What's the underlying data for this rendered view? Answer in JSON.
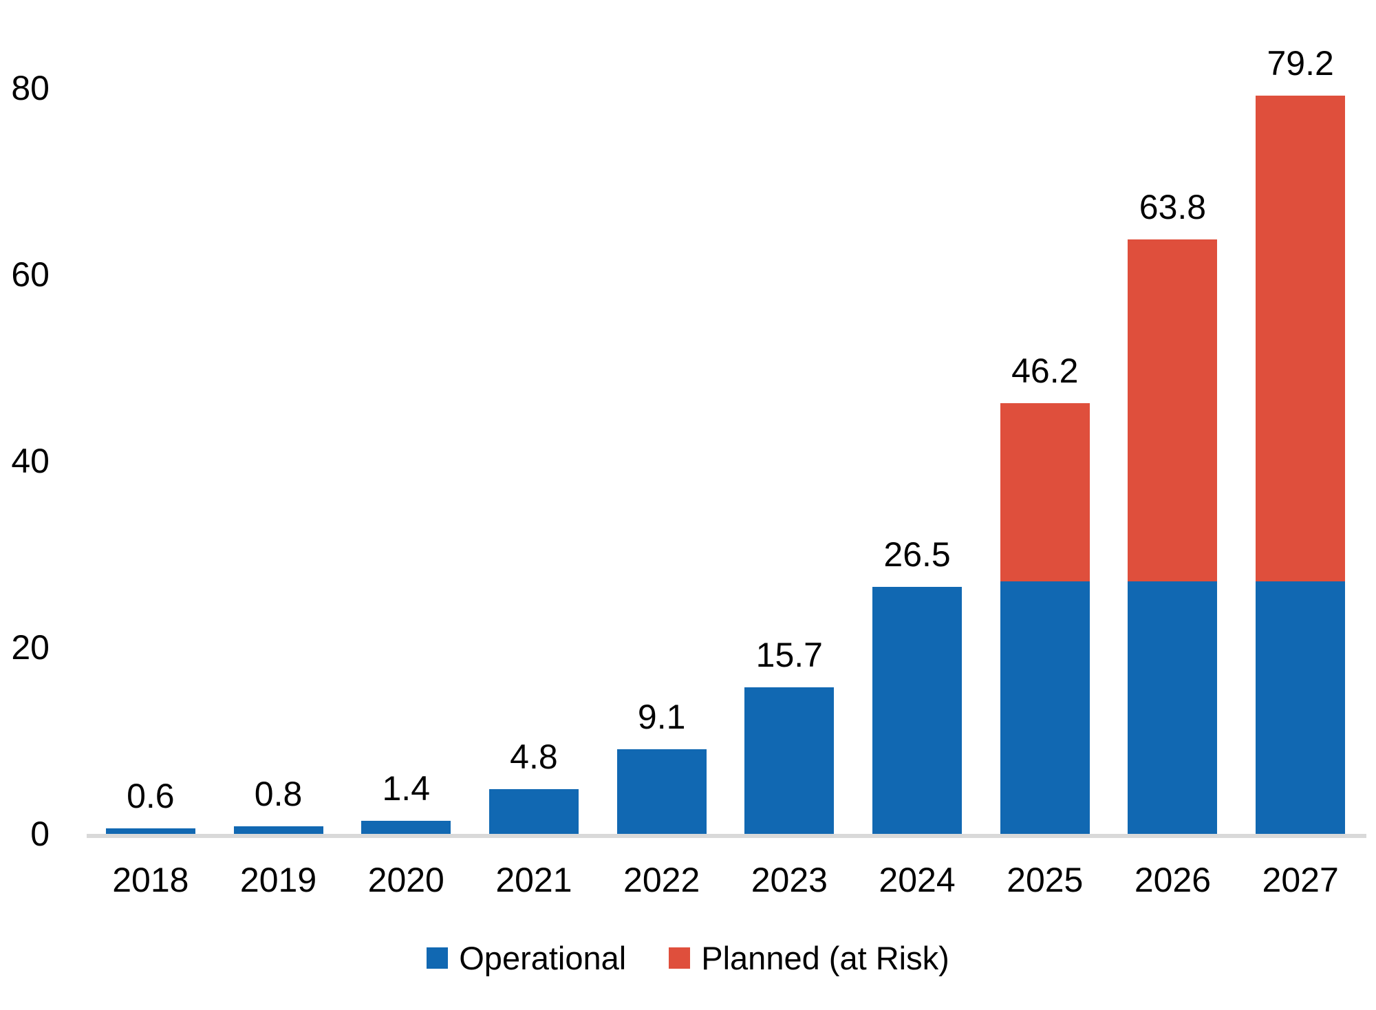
{
  "chart_data": {
    "type": "bar",
    "stacked": true,
    "title": "",
    "xlabel": "",
    "ylabel": "",
    "categories": [
      "2018",
      "2019",
      "2020",
      "2021",
      "2022",
      "2023",
      "2024",
      "2025",
      "2026",
      "2027"
    ],
    "series": [
      {
        "name": "Operational",
        "color": "#1168B2",
        "values": [
          0.6,
          0.8,
          1.4,
          4.8,
          9.1,
          15.7,
          26.5,
          27.1,
          27.1,
          27.1
        ]
      },
      {
        "name": "Planned (at Risk)",
        "color": "#DF4F3C",
        "values": [
          0,
          0,
          0,
          0,
          0,
          0,
          0,
          19.1,
          36.7,
          52.1
        ]
      }
    ],
    "totals": [
      0.6,
      0.8,
      1.4,
      4.8,
      9.1,
      15.7,
      26.5,
      46.2,
      63.8,
      79.2
    ],
    "total_labels": [
      "0.6",
      "0.8",
      "1.4",
      "4.8",
      "9.1",
      "15.7",
      "26.5",
      "46.2",
      "63.8",
      "79.2"
    ],
    "yticks": [
      "0",
      "20",
      "40",
      "60",
      "80"
    ],
    "ytick_values": [
      0,
      20,
      40,
      60,
      80
    ],
    "ylim": [
      0,
      85
    ],
    "grid": false,
    "legend_position": "bottom",
    "axis_line_color": "#D9D9D9",
    "text_color": "#000000",
    "background_color": "#FFFFFF"
  }
}
